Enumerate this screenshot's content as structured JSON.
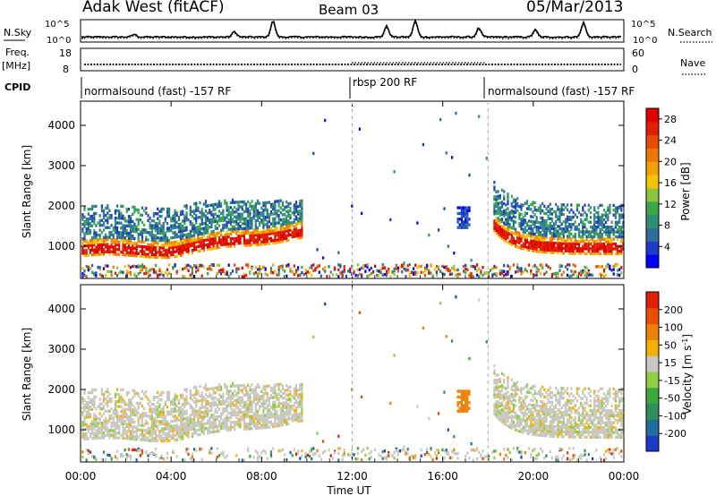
{
  "header": {
    "station": "Adak West (fitACF)",
    "beam": "Beam 03",
    "date": "05/Mar/2013"
  },
  "strips": {
    "nsky_label": "N.Sky",
    "nsearch_label": "N.Search",
    "noise_ticks": [
      "10^5",
      "10^0"
    ],
    "freq_label_top": "Freq.",
    "freq_label_unit": "[MHz]",
    "freq_ticks": [
      "18",
      "8"
    ],
    "nave_label": "Nave",
    "nave_ticks": [
      "60",
      "0"
    ],
    "cpid_label": "CPID",
    "cpid_segments": [
      {
        "label": "normalsound (fast) -157 RF",
        "start_hour": 0,
        "end_hour": 12
      },
      {
        "label": "rbsp 200 RF",
        "start_hour": 12,
        "end_hour": 18
      },
      {
        "label": "normalsound (fast) -157 RF",
        "start_hour": 18,
        "end_hour": 24
      }
    ]
  },
  "chart_data": [
    {
      "type": "heatmap",
      "parameter": "power",
      "ylabel": "Slant Range [km]",
      "xlabel": "Time UT",
      "xlim": [
        0,
        24
      ],
      "ylim": [
        200,
        4600
      ],
      "x_ticks": [
        "00:00",
        "04:00",
        "08:00",
        "12:00",
        "16:00",
        "20:00",
        "00:00"
      ],
      "y_ticks": [
        1000,
        2000,
        3000,
        4000
      ],
      "colorbar": {
        "label": "Power [dB]",
        "ticks": [
          4,
          8,
          12,
          16,
          20,
          24,
          28
        ],
        "colors": [
          "#0000ff",
          "#1e3cc8",
          "#2e6fa0",
          "#2f8f74",
          "#3aa84a",
          "#8cc63f",
          "#f5c400",
          "#f5a000",
          "#f07800",
          "#e84c00",
          "#e02000",
          "#e00000"
        ]
      }
    },
    {
      "type": "heatmap",
      "parameter": "velocity",
      "ylabel": "Slant Range [km]",
      "xlabel": "Time UT",
      "xlim": [
        0,
        24
      ],
      "ylim": [
        200,
        4600
      ],
      "x_ticks": [
        "00:00",
        "04:00",
        "08:00",
        "12:00",
        "16:00",
        "20:00",
        "00:00"
      ],
      "y_ticks": [
        1000,
        2000,
        3000,
        4000
      ],
      "colorbar": {
        "label": "Velocity [m s^-1]",
        "ticks": [
          200,
          100,
          50,
          15,
          -15,
          -50,
          -100,
          -200
        ],
        "colors": [
          "#1a3cc8",
          "#1e6fa0",
          "#2e8f5a",
          "#3aa83a",
          "#8cd040",
          "#c8c8c0",
          "#f5b000",
          "#f08000",
          "#e85000",
          "#e02000"
        ]
      }
    }
  ]
}
